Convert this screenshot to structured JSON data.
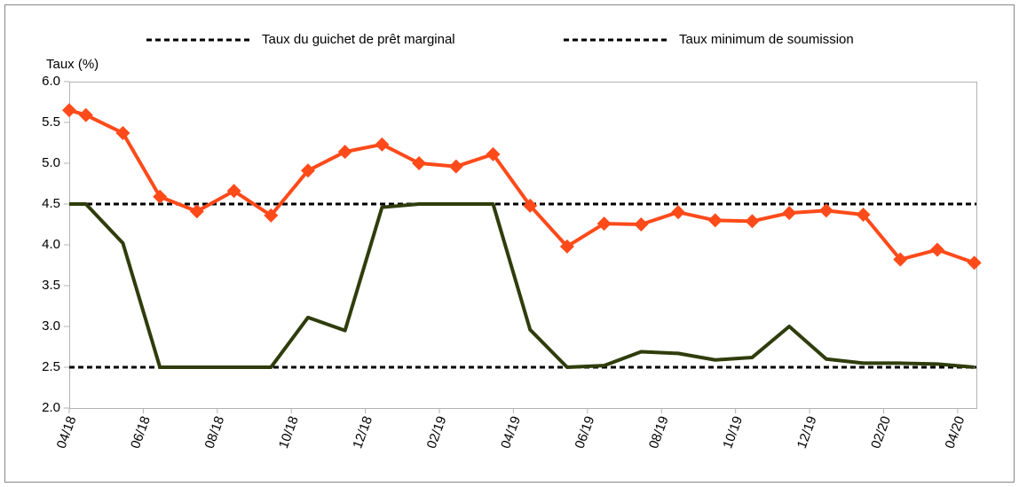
{
  "chart_data": {
    "type": "line",
    "y_label": "Taux (%)",
    "x": [
      0,
      0.45,
      1.45,
      2.45,
      3.45,
      4.45,
      5.45,
      6.45,
      7.45,
      8.45,
      9.45,
      10.45,
      11.45,
      12.45,
      13.45,
      14.45,
      15.45,
      16.45,
      17.45,
      18.45,
      19.45,
      20.45,
      21.45,
      22.45,
      23.45,
      24.45
    ],
    "xlim": [
      0,
      25
    ],
    "xticks": [
      {
        "value": 0,
        "label": "04/18"
      },
      {
        "value": 2,
        "label": "06/18"
      },
      {
        "value": 4,
        "label": "08/18"
      },
      {
        "value": 6,
        "label": "10/18"
      },
      {
        "value": 8,
        "label": "12/18"
      },
      {
        "value": 10,
        "label": "02/19"
      },
      {
        "value": 12,
        "label": "04/19"
      },
      {
        "value": 14,
        "label": "06/19"
      },
      {
        "value": 16,
        "label": "08/19"
      },
      {
        "value": 18,
        "label": "10/19"
      },
      {
        "value": 20,
        "label": "12/19"
      },
      {
        "value": 22,
        "label": "02/20"
      },
      {
        "value": 24,
        "label": "04/20"
      }
    ],
    "ylim": [
      2,
      6
    ],
    "yticks": [
      {
        "value": 2,
        "label": "2.0"
      },
      {
        "value": 2.5,
        "label": "2.5"
      },
      {
        "value": 3,
        "label": "3.0"
      },
      {
        "value": 3.5,
        "label": "3.5"
      },
      {
        "value": 4,
        "label": "4.0"
      },
      {
        "value": 4.5,
        "label": "4.5"
      },
      {
        "value": 5,
        "label": "5.0"
      },
      {
        "value": 5.5,
        "label": "5.5"
      },
      {
        "value": 6,
        "label": "6.0"
      }
    ],
    "series": [
      {
        "color": "#ff4a1a",
        "markers": true,
        "values": [
          5.65,
          5.59,
          5.37,
          4.59,
          4.41,
          4.66,
          4.36,
          4.91,
          5.14,
          5.23,
          5.0,
          4.96,
          5.11,
          4.48,
          3.98,
          4.26,
          4.25,
          4.4,
          4.3,
          4.29,
          4.39,
          4.42,
          4.37,
          3.82,
          3.94,
          3.78
        ]
      },
      {
        "color": "#2f3d0c",
        "markers": false,
        "values": [
          4.5,
          4.5,
          4.02,
          2.5,
          2.5,
          2.5,
          2.5,
          3.11,
          2.95,
          4.46,
          4.5,
          4.5,
          4.5,
          2.96,
          2.5,
          2.52,
          2.69,
          2.67,
          2.59,
          2.62,
          3.0,
          2.6,
          2.55,
          2.55,
          2.54,
          2.5
        ]
      }
    ],
    "hlines": [
      {
        "name": "Taux du guichet de prêt marginal",
        "value": 4.5,
        "color": "#000000"
      },
      {
        "name": "Taux minimum de soumission",
        "value": 2.5,
        "color": "#000000"
      }
    ]
  }
}
